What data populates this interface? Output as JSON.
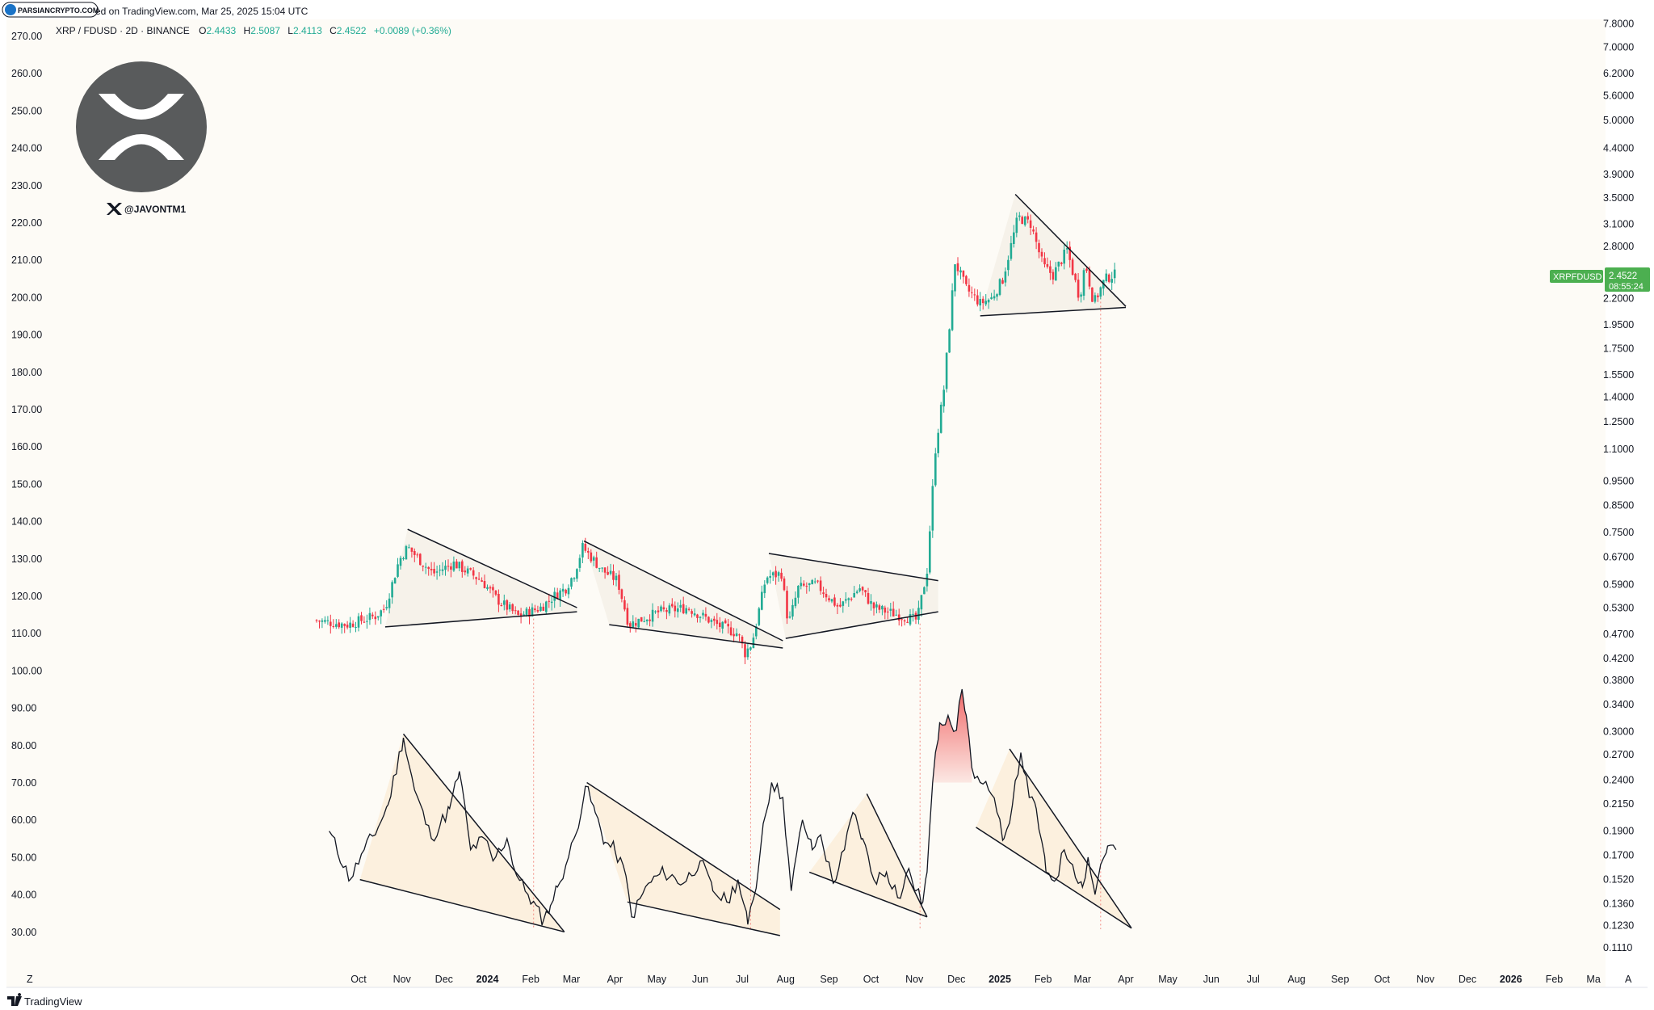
{
  "header": {
    "watermark": "PARSIANCRYPTO.COM",
    "published": "ed on TradingView.com, Mar 25, 2025 15:04 UTC",
    "symbol": "XRP / FDUSD · 2D · BINANCE",
    "o_label": "O",
    "o_value": "2.4433",
    "h_label": "H",
    "h_value": "2.5087",
    "l_label": "L",
    "l_value": "2.4113",
    "c_label": "C",
    "c_value": "2.4522",
    "change": "+0.0089 (+0.36%)"
  },
  "logo": {
    "handle": "@JAVONTM1",
    "x_icon": "x-logo-icon",
    "xrp_icon": "xrp-logo-icon"
  },
  "price_tag": {
    "symbol": "XRPFDUSD",
    "price": "2.4522",
    "countdown": "08:55:24",
    "color": "#4caf50"
  },
  "footer": {
    "brand": "TradingView",
    "left_marker": "Z",
    "right_marker": "A"
  },
  "colors": {
    "up": "#22ab94",
    "down": "#f23645",
    "background": "#fdfbf6",
    "rsi_peak": "#f05a5a"
  },
  "chart_data": {
    "type": "candlestick",
    "left_axis": {
      "labels": [
        "270.00",
        "260.00",
        "250.00",
        "240.00",
        "230.00",
        "220.00",
        "210.00",
        "200.00",
        "190.00",
        "180.00",
        "170.00",
        "160.00",
        "150.00",
        "140.00",
        "130.00",
        "120.00",
        "110.00",
        "100.00",
        "90.00",
        "80.00",
        "70.00",
        "60.00",
        "50.00",
        "40.00",
        "30.00"
      ],
      "range": [
        26,
        272
      ]
    },
    "right_axis": {
      "scale": "log",
      "labels": [
        "7.8000",
        "7.0000",
        "6.2000",
        "5.6000",
        "5.0000",
        "4.4000",
        "3.9000",
        "3.5000",
        "3.1000",
        "2.8000",
        "2.2000",
        "1.9500",
        "1.7500",
        "1.5500",
        "1.4000",
        "1.2500",
        "1.1000",
        "0.9500",
        "0.8500",
        "0.7500",
        "0.6700",
        "0.5900",
        "0.5300",
        "0.4700",
        "0.4200",
        "0.3800",
        "0.3400",
        "0.3000",
        "0.2700",
        "0.2400",
        "0.2150",
        "0.1900",
        "0.1700",
        "0.1520",
        "0.1360",
        "0.1230",
        "0.1110"
      ]
    },
    "x_axis": {
      "labels": [
        {
          "text": "Oct",
          "bold": false
        },
        {
          "text": "Nov",
          "bold": false
        },
        {
          "text": "Dec",
          "bold": false
        },
        {
          "text": "2024",
          "bold": true
        },
        {
          "text": "Feb",
          "bold": false
        },
        {
          "text": "Mar",
          "bold": false
        },
        {
          "text": "Apr",
          "bold": false
        },
        {
          "text": "May",
          "bold": false
        },
        {
          "text": "Jun",
          "bold": false
        },
        {
          "text": "Jul",
          "bold": false
        },
        {
          "text": "Aug",
          "bold": false
        },
        {
          "text": "Sep",
          "bold": false
        },
        {
          "text": "Oct",
          "bold": false
        },
        {
          "text": "Nov",
          "bold": false
        },
        {
          "text": "Dec",
          "bold": false
        },
        {
          "text": "2025",
          "bold": true
        },
        {
          "text": "Feb",
          "bold": false
        },
        {
          "text": "Mar",
          "bold": false
        },
        {
          "text": "Apr",
          "bold": false
        },
        {
          "text": "May",
          "bold": false
        },
        {
          "text": "Jun",
          "bold": false
        },
        {
          "text": "Jul",
          "bold": false
        },
        {
          "text": "Aug",
          "bold": false
        },
        {
          "text": "Sep",
          "bold": false
        },
        {
          "text": "Oct",
          "bold": false
        },
        {
          "text": "Nov",
          "bold": false
        },
        {
          "text": "Dec",
          "bold": false
        },
        {
          "text": "2026",
          "bold": true
        },
        {
          "text": "Feb",
          "bold": false
        },
        {
          "text": "Ma",
          "bold": false
        }
      ]
    },
    "price_series": {
      "name": "XRPFDUSD",
      "date_range": [
        "2023-09-01",
        "2025-03-25"
      ],
      "anchors": [
        [
          "2023-09-01",
          0.5
        ],
        [
          "2023-09-25",
          0.49
        ],
        [
          "2023-10-15",
          0.51
        ],
        [
          "2023-10-22",
          0.53
        ],
        [
          "2023-11-01",
          0.66
        ],
        [
          "2023-11-07",
          0.7
        ],
        [
          "2023-11-25",
          0.62
        ],
        [
          "2023-12-10",
          0.65
        ],
        [
          "2023-12-30",
          0.6
        ],
        [
          "2024-01-10",
          0.55
        ],
        [
          "2024-01-25",
          0.51
        ],
        [
          "2024-02-10",
          0.53
        ],
        [
          "2024-02-20",
          0.56
        ],
        [
          "2024-02-28",
          0.58
        ],
        [
          "2024-03-05",
          0.62
        ],
        [
          "2024-03-11",
          0.7
        ],
        [
          "2024-03-25",
          0.63
        ],
        [
          "2024-04-05",
          0.6
        ],
        [
          "2024-04-13",
          0.49
        ],
        [
          "2024-05-05",
          0.52
        ],
        [
          "2024-05-25",
          0.53
        ],
        [
          "2024-06-15",
          0.49
        ],
        [
          "2024-06-30",
          0.47
        ],
        [
          "2024-07-05",
          0.43
        ],
        [
          "2024-07-10",
          0.45
        ],
        [
          "2024-07-20",
          0.61
        ],
        [
          "2024-07-31",
          0.62
        ],
        [
          "2024-08-05",
          0.49
        ],
        [
          "2024-08-12",
          0.58
        ],
        [
          "2024-08-25",
          0.59
        ],
        [
          "2024-09-10",
          0.53
        ],
        [
          "2024-09-25",
          0.58
        ],
        [
          "2024-10-05",
          0.53
        ],
        [
          "2024-10-25",
          0.51
        ],
        [
          "2024-11-05",
          0.5
        ],
        [
          "2024-11-12",
          0.63
        ],
        [
          "2024-11-18",
          1.1
        ],
        [
          "2024-11-24",
          1.45
        ],
        [
          "2024-12-02",
          2.6
        ],
        [
          "2024-12-10",
          2.3
        ],
        [
          "2024-12-20",
          2.15
        ],
        [
          "2024-12-28",
          2.2
        ],
        [
          "2025-01-05",
          2.4
        ],
        [
          "2025-01-16",
          3.2
        ],
        [
          "2025-01-25",
          3.1
        ],
        [
          "2025-02-03",
          2.55
        ],
        [
          "2025-02-10",
          2.45
        ],
        [
          "2025-02-20",
          2.75
        ],
        [
          "2025-03-01",
          2.2
        ],
        [
          "2025-03-05",
          2.6
        ],
        [
          "2025-03-11",
          2.15
        ],
        [
          "2025-03-19",
          2.4
        ],
        [
          "2025-03-25",
          2.4522
        ]
      ]
    },
    "rsi_series": {
      "name": "RSI",
      "anchors": [
        [
          "2023-09-10",
          57
        ],
        [
          "2023-09-25",
          44
        ],
        [
          "2023-10-05",
          52
        ],
        [
          "2023-10-15",
          58
        ],
        [
          "2023-10-22",
          64
        ],
        [
          "2023-11-02",
          82
        ],
        [
          "2023-11-10",
          68
        ],
        [
          "2023-11-22",
          55
        ],
        [
          "2023-12-05",
          63
        ],
        [
          "2023-12-12",
          73
        ],
        [
          "2023-12-20",
          52
        ],
        [
          "2023-12-30",
          55
        ],
        [
          "2024-01-05",
          49
        ],
        [
          "2024-01-15",
          55
        ],
        [
          "2024-01-22",
          45
        ],
        [
          "2024-01-30",
          40
        ],
        [
          "2024-02-10",
          33
        ],
        [
          "2024-02-15",
          37
        ],
        [
          "2024-02-20",
          42
        ],
        [
          "2024-02-28",
          50
        ],
        [
          "2024-03-04",
          56
        ],
        [
          "2024-03-11",
          69
        ],
        [
          "2024-03-18",
          62
        ],
        [
          "2024-03-25",
          54
        ],
        [
          "2024-04-01",
          52
        ],
        [
          "2024-04-09",
          45
        ],
        [
          "2024-04-13",
          34
        ],
        [
          "2024-04-25",
          43
        ],
        [
          "2024-05-06",
          46
        ],
        [
          "2024-05-20",
          43
        ],
        [
          "2024-06-01",
          49
        ],
        [
          "2024-06-10",
          41
        ],
        [
          "2024-06-20",
          38
        ],
        [
          "2024-06-28",
          44
        ],
        [
          "2024-07-05",
          32
        ],
        [
          "2024-07-12",
          45
        ],
        [
          "2024-07-16",
          59
        ],
        [
          "2024-07-22",
          70
        ],
        [
          "2024-07-30",
          66
        ],
        [
          "2024-08-05",
          41
        ],
        [
          "2024-08-13",
          60
        ],
        [
          "2024-08-20",
          52
        ],
        [
          "2024-08-26",
          56
        ],
        [
          "2024-09-04",
          43
        ],
        [
          "2024-09-12",
          52
        ],
        [
          "2024-09-18",
          62
        ],
        [
          "2024-09-25",
          55
        ],
        [
          "2024-10-03",
          44
        ],
        [
          "2024-10-12",
          46
        ],
        [
          "2024-10-22",
          39
        ],
        [
          "2024-10-28",
          47
        ],
        [
          "2024-11-02",
          41
        ],
        [
          "2024-11-07",
          38
        ],
        [
          "2024-11-10",
          46
        ],
        [
          "2024-11-14",
          70
        ],
        [
          "2024-11-19",
          86
        ],
        [
          "2024-11-25",
          88
        ],
        [
          "2024-12-01",
          84
        ],
        [
          "2024-12-05",
          95
        ],
        [
          "2024-12-08",
          88
        ],
        [
          "2024-12-12",
          74
        ],
        [
          "2024-12-18",
          70
        ],
        [
          "2024-12-24",
          68
        ],
        [
          "2024-12-30",
          62
        ],
        [
          "2025-01-04",
          55
        ],
        [
          "2025-01-10",
          64
        ],
        [
          "2025-01-16",
          78
        ],
        [
          "2025-01-22",
          66
        ],
        [
          "2025-01-27",
          63
        ],
        [
          "2025-02-03",
          46
        ],
        [
          "2025-02-10",
          44
        ],
        [
          "2025-02-16",
          52
        ],
        [
          "2025-02-22",
          48
        ],
        [
          "2025-03-01",
          42
        ],
        [
          "2025-03-05",
          50
        ],
        [
          "2025-03-10",
          40
        ],
        [
          "2025-03-14",
          48
        ],
        [
          "2025-03-19",
          53
        ],
        [
          "2025-03-25",
          52
        ]
      ]
    },
    "trend_lines": [
      {
        "pane": "price",
        "from": [
          "2023-10-20",
          0.485
        ],
        "to": [
          "2024-03-05",
          0.52
        ]
      },
      {
        "pane": "price",
        "from": [
          "2023-11-05",
          0.76
        ],
        "to": [
          "2024-03-05",
          0.53
        ]
      },
      {
        "pane": "price",
        "from": [
          "2024-03-28",
          0.49
        ],
        "to": [
          "2024-07-30",
          0.44
        ]
      },
      {
        "pane": "price",
        "from": [
          "2024-03-10",
          0.72
        ],
        "to": [
          "2024-07-30",
          0.455
        ]
      },
      {
        "pane": "price",
        "from": [
          "2024-07-20",
          0.68
        ],
        "to": [
          "2024-11-18",
          0.6
        ]
      },
      {
        "pane": "price",
        "from": [
          "2024-08-01",
          0.46
        ],
        "to": [
          "2024-11-18",
          0.52
        ]
      },
      {
        "pane": "price",
        "from": [
          "2024-12-18",
          2.03
        ],
        "to": [
          "2025-04-01",
          2.11
        ]
      },
      {
        "pane": "price",
        "from": [
          "2025-01-12",
          3.55
        ],
        "to": [
          "2025-04-01",
          2.12
        ]
      },
      {
        "pane": "rsi",
        "from": [
          "2023-10-02",
          44
        ],
        "to": [
          "2024-02-25",
          30
        ]
      },
      {
        "pane": "rsi",
        "from": [
          "2023-11-02",
          83
        ],
        "to": [
          "2024-02-25",
          30
        ]
      },
      {
        "pane": "rsi",
        "from": [
          "2024-04-10",
          38
        ],
        "to": [
          "2024-07-28",
          29
        ]
      },
      {
        "pane": "rsi",
        "from": [
          "2024-03-12",
          70
        ],
        "to": [
          "2024-07-28",
          36
        ]
      },
      {
        "pane": "rsi",
        "from": [
          "2024-08-18",
          46
        ],
        "to": [
          "2024-11-10",
          34
        ]
      },
      {
        "pane": "rsi",
        "from": [
          "2024-09-28",
          67
        ],
        "to": [
          "2024-11-10",
          34
        ]
      },
      {
        "pane": "rsi",
        "from": [
          "2024-12-15",
          58
        ],
        "to": [
          "2025-04-05",
          31
        ]
      },
      {
        "pane": "rsi",
        "from": [
          "2025-01-08",
          79
        ],
        "to": [
          "2025-04-05",
          31
        ]
      }
    ],
    "dotted_verticals": [
      "2024-02-03",
      "2024-07-07",
      "2024-11-05",
      "2025-03-14"
    ]
  }
}
